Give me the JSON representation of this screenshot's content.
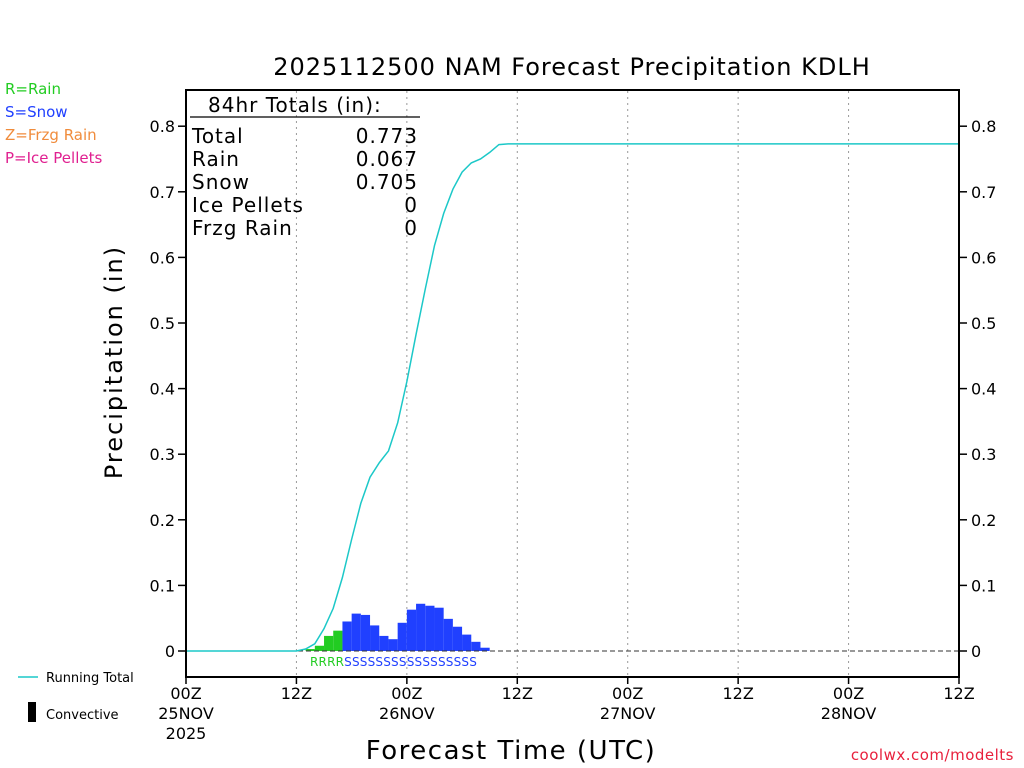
{
  "chart_data": {
    "type": "bar",
    "title": "2025112500 NAM Forecast Precipitation KDLH",
    "xlabel": "Forecast Time (UTC)",
    "ylabel": "Precipitation (in)",
    "ylim": [
      0,
      0.85
    ],
    "xlim_hours": [
      0,
      84
    ],
    "y_ticks": [
      0,
      0.1,
      0.2,
      0.3,
      0.4,
      0.5,
      0.6,
      0.7,
      0.8
    ],
    "y_tick_labels": [
      "0",
      "0.1",
      "0.2",
      "0.3",
      "0.4",
      "0.5",
      "0.6",
      "0.7",
      "0.8"
    ],
    "x_ticks": [
      {
        "hour": 0,
        "label": "00Z",
        "sub": "25NOV",
        "sub2": "2025"
      },
      {
        "hour": 12,
        "label": "12Z",
        "sub": "",
        "sub2": ""
      },
      {
        "hour": 24,
        "label": "00Z",
        "sub": "26NOV",
        "sub2": ""
      },
      {
        "hour": 36,
        "label": "12Z",
        "sub": "",
        "sub2": ""
      },
      {
        "hour": 48,
        "label": "00Z",
        "sub": "27NOV",
        "sub2": ""
      },
      {
        "hour": 60,
        "label": "12Z",
        "sub": "",
        "sub2": ""
      },
      {
        "hour": 72,
        "label": "00Z",
        "sub": "28NOV",
        "sub2": ""
      },
      {
        "hour": 84,
        "label": "12Z",
        "sub": "",
        "sub2": ""
      }
    ],
    "bar_width_hours": 1,
    "bar_colors": {
      "R": "#22cc22",
      "S": "#2040ff"
    },
    "bars": [
      {
        "hour": 13,
        "value": 0.003,
        "type": "R"
      },
      {
        "hour": 14,
        "value": 0.008,
        "type": "R"
      },
      {
        "hour": 15,
        "value": 0.023,
        "type": "R"
      },
      {
        "hour": 16,
        "value": 0.031,
        "type": "R"
      },
      {
        "hour": 17,
        "value": 0.045,
        "type": "S"
      },
      {
        "hour": 18,
        "value": 0.057,
        "type": "S"
      },
      {
        "hour": 19,
        "value": 0.055,
        "type": "S"
      },
      {
        "hour": 20,
        "value": 0.039,
        "type": "S"
      },
      {
        "hour": 21,
        "value": 0.023,
        "type": "S"
      },
      {
        "hour": 22,
        "value": 0.018,
        "type": "S"
      },
      {
        "hour": 23,
        "value": 0.043,
        "type": "S"
      },
      {
        "hour": 24,
        "value": 0.063,
        "type": "S"
      },
      {
        "hour": 25,
        "value": 0.072,
        "type": "S"
      },
      {
        "hour": 26,
        "value": 0.069,
        "type": "S"
      },
      {
        "hour": 27,
        "value": 0.066,
        "type": "S"
      },
      {
        "hour": 28,
        "value": 0.049,
        "type": "S"
      },
      {
        "hour": 29,
        "value": 0.037,
        "type": "S"
      },
      {
        "hour": 30,
        "value": 0.025,
        "type": "S"
      },
      {
        "hour": 31,
        "value": 0.014,
        "type": "S"
      },
      {
        "hour": 32,
        "value": 0.005,
        "type": "S"
      }
    ],
    "series": [
      {
        "name": "Running Total",
        "color": "#1cc8c8",
        "x": [
          0,
          12,
          13,
          14,
          15,
          16,
          17,
          18,
          19,
          20,
          21,
          22,
          23,
          24,
          25,
          26,
          27,
          28,
          29,
          30,
          31,
          32,
          33,
          34,
          35,
          84
        ],
        "values": [
          0,
          0,
          0.003,
          0.011,
          0.034,
          0.065,
          0.112,
          0.17,
          0.225,
          0.265,
          0.287,
          0.305,
          0.348,
          0.411,
          0.483,
          0.552,
          0.618,
          0.667,
          0.704,
          0.73,
          0.744,
          0.75,
          0.76,
          0.772,
          0.773,
          0.773
        ]
      }
    ],
    "ptype_strip": "RRRRSSSSSSSSSSSSSSSSS",
    "ptype_strip_rain": "RRRR",
    "ptype_strip_snow": "SSSSSSSSSSSSSSSSS",
    "totals_box": {
      "heading": "84hr Totals (in):",
      "rows": [
        {
          "label": "Total",
          "value": "0.773"
        },
        {
          "label": "Rain",
          "value": "0.067"
        },
        {
          "label": "Snow",
          "value": "0.705"
        },
        {
          "label": "Ice Pellets",
          "value": "0"
        },
        {
          "label": "Frzg Rain",
          "value": "0"
        }
      ]
    }
  },
  "ptype_legend": [
    {
      "text": "R=Rain",
      "color": "#22cc22"
    },
    {
      "text": "S=Snow",
      "color": "#2040ff"
    },
    {
      "text": "Z=Frzg Rain",
      "color": "#f08c3c"
    },
    {
      "text": "P=Ice Pellets",
      "color": "#e02090"
    }
  ],
  "bottom_legend": {
    "running_total": "Running Total",
    "convective": "Convective"
  },
  "credit": "coolwx.com/modelts",
  "colors": {
    "credit": "#e8203c",
    "line": "#1cc8c8",
    "convective": "#000000"
  }
}
